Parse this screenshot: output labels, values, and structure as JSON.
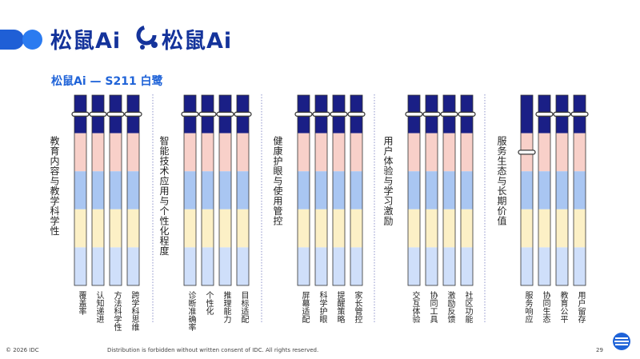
{
  "brand": {
    "logo_text_1": "松鼠Ai",
    "logo_text_2": "松鼠Ai"
  },
  "subtitle": "松鼠Ai — S211 白鹭",
  "footer": {
    "copyright": "© 2026 IDC",
    "notice": "Distribution is forbidden without written consent of IDC. All rights reserved.",
    "page": "29"
  },
  "colors": {
    "band_1": "#1a1f86",
    "band_2": "#f8d0c9",
    "band_3": "#a9c6f2",
    "band_4": "#fcf0c6",
    "band_5": "#cfdffa",
    "divider": "#8e93c9",
    "handle_fill": "#ffffff",
    "handle_stroke": "#3a3a3a"
  },
  "chart_data": {
    "type": "bar",
    "levels": 5,
    "groups": [
      {
        "title": "教育内容与教学科学性",
        "items": [
          {
            "label": "覆盖率",
            "value": 4.5
          },
          {
            "label": "认知递进",
            "value": 4.5
          },
          {
            "label": "方法科学性",
            "value": 4.5
          },
          {
            "label": "跨学科思维",
            "value": 4.5
          }
        ]
      },
      {
        "title": "智能技术应用与个性化程度",
        "items": [
          {
            "label": "诊断准确率",
            "value": 4.5
          },
          {
            "label": "个性化",
            "value": 4.5
          },
          {
            "label": "推理能力",
            "value": 4.5
          },
          {
            "label": "目标适配",
            "value": 4.5
          }
        ]
      },
      {
        "title": "健康护眼与使用管控",
        "items": [
          {
            "label": "屏幕适配",
            "value": 4.5
          },
          {
            "label": "科学护眼",
            "value": 4.5
          },
          {
            "label": "提醒策略",
            "value": 4.5
          },
          {
            "label": "家长管控",
            "value": 4.5
          }
        ]
      },
      {
        "title": "用户体验与学习激励",
        "items": [
          {
            "label": "交互体验",
            "value": 4.5
          },
          {
            "label": "协同工具",
            "value": 4.5
          },
          {
            "label": "激励反馈",
            "value": 4.5
          },
          {
            "label": "社区功能",
            "value": 4.5
          }
        ]
      },
      {
        "title": "服务生态与长期价值",
        "items": [
          {
            "label": "服务响应",
            "value": 3.5
          },
          {
            "label": "协同生态",
            "value": 4.5
          },
          {
            "label": "教育公平",
            "value": 4.5
          },
          {
            "label": "用户留存",
            "value": 4.5
          }
        ]
      }
    ]
  }
}
